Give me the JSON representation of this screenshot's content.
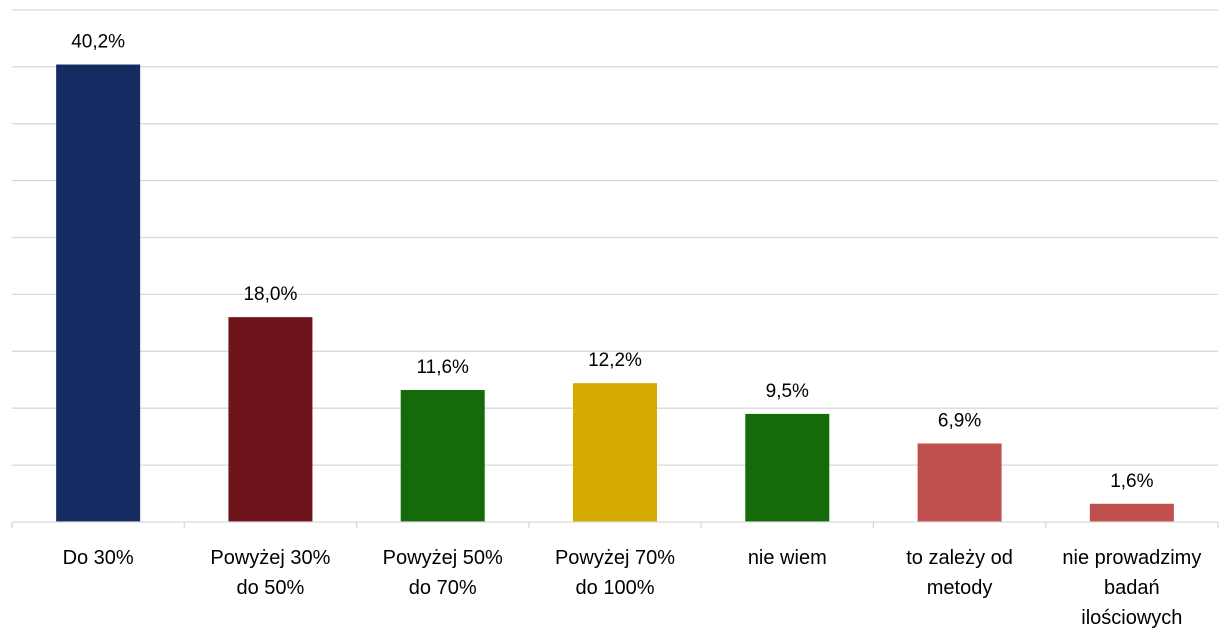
{
  "chart_data": {
    "type": "bar",
    "title": "",
    "xlabel": "",
    "ylabel": "",
    "ylim": [
      0,
      45
    ],
    "grid": true,
    "legend": "none",
    "categories": [
      [
        "Do 30%"
      ],
      [
        "Powyżej 30%",
        "do 50%"
      ],
      [
        "Powyżej 50%",
        "do 70%"
      ],
      [
        "Powyżej 70%",
        "do 100%"
      ],
      [
        "nie wiem"
      ],
      [
        "to zależy od",
        "metody"
      ],
      [
        "nie prowadzimy",
        "badań",
        "ilościowych"
      ]
    ],
    "values": [
      40.2,
      18.0,
      11.6,
      12.2,
      9.5,
      6.9,
      1.6
    ],
    "value_labels": [
      "40,2%",
      "18,0%",
      "11,6%",
      "12,2%",
      "9,5%",
      "6,9%",
      "1,6%"
    ],
    "colors": [
      "#142c61",
      "#70141c",
      "#156a09",
      "#d6ab00",
      "#156a09",
      "#c0504d",
      "#c0504d"
    ]
  }
}
